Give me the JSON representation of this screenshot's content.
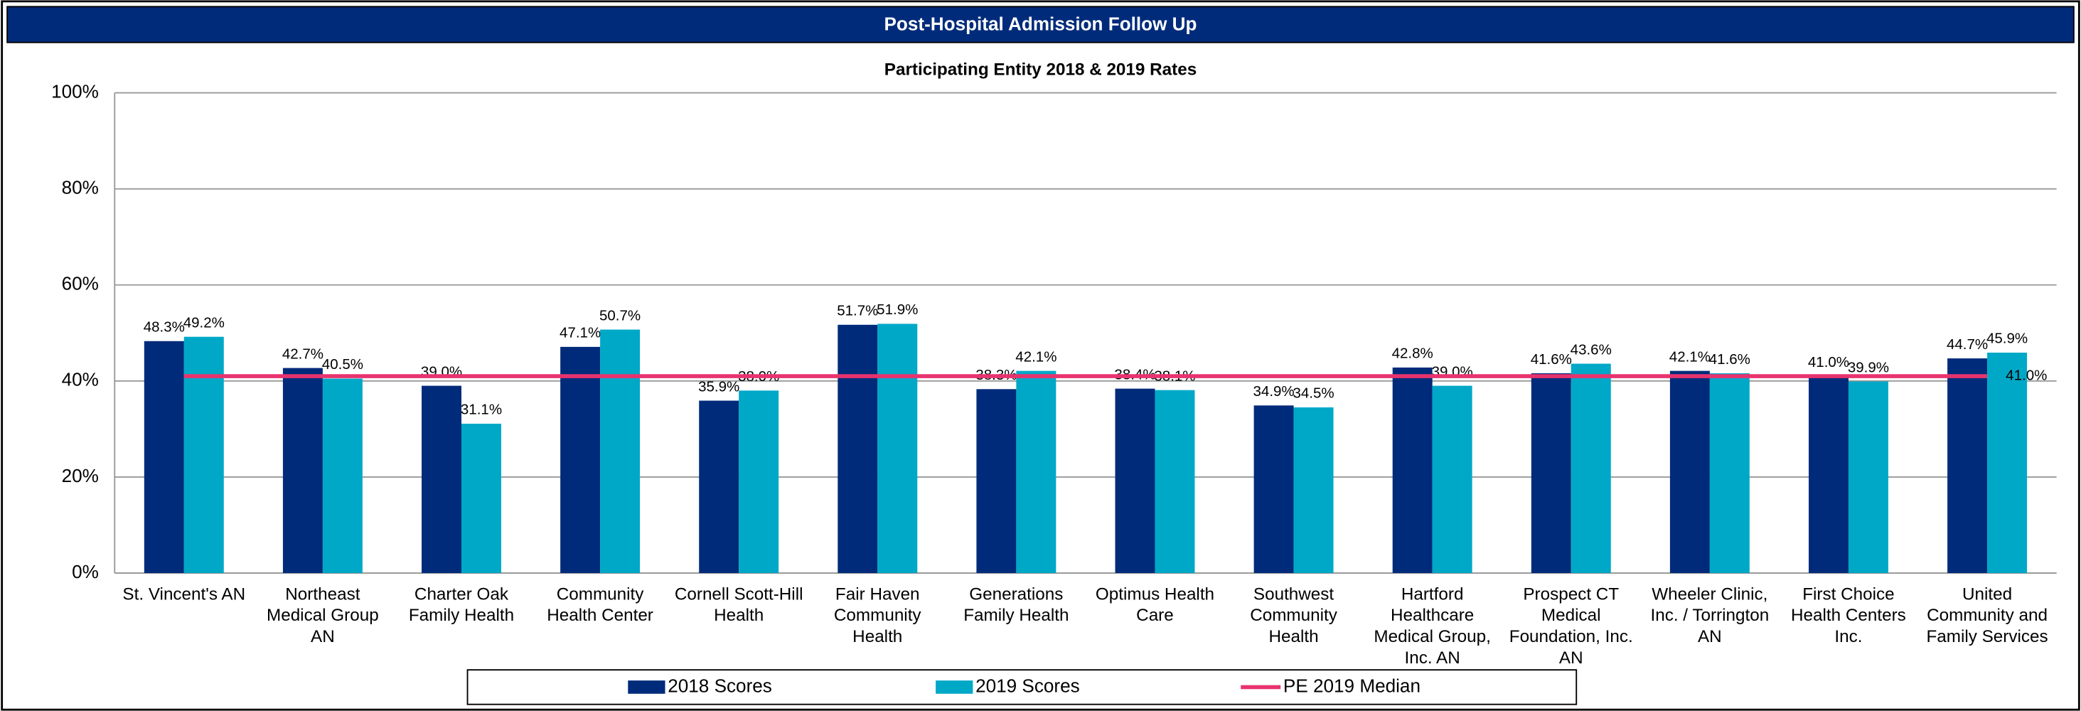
{
  "header": "Post-Hospital Admission Follow Up",
  "chart_data": {
    "type": "bar",
    "title": "Participating Entity 2018 & 2019 Rates",
    "categories": [
      "St. Vincent's AN",
      "Northeast Medical Group AN",
      "Charter Oak Family Health",
      "Community Health Center",
      "Cornell Scott-Hill Health",
      "Fair Haven Community Health",
      "Generations Family Health",
      "Optimus Health Care",
      "Southwest Community Health",
      "Hartford Healthcare Medical Group, Inc. AN",
      "Prospect CT Medical Foundation, Inc. AN",
      "Wheeler Clinic, Inc. / Torrington AN",
      "First Choice Health Centers Inc.",
      "United Community and Family Services"
    ],
    "series": [
      {
        "name": "2018 Scores",
        "color": "#002b7a",
        "values": [
          48.3,
          42.7,
          39.0,
          47.1,
          35.9,
          51.7,
          38.3,
          38.4,
          34.9,
          42.8,
          41.6,
          42.1,
          41.0,
          44.7
        ],
        "value_labels": [
          "48.3%",
          "42.7%",
          "39.0%",
          "47.1%",
          "35.9%",
          "51.7%",
          "38.3%",
          "38.4%",
          "34.9%",
          "42.8%",
          "41.6%",
          "42.1%",
          "41.0%",
          "44.7%"
        ]
      },
      {
        "name": "2019 Scores",
        "color": "#00a8c8",
        "values": [
          49.2,
          40.5,
          31.1,
          50.7,
          38.0,
          51.9,
          42.1,
          38.1,
          34.5,
          39.0,
          43.6,
          41.6,
          39.9,
          45.9
        ],
        "value_labels": [
          "49.2%",
          "40.5%",
          "31.1%",
          "50.7%",
          "38.0%",
          "51.9%",
          "42.1%",
          "38.1%",
          "34.5%",
          "39.0%",
          "43.6%",
          "41.6%",
          "39.9%",
          "45.9%"
        ]
      }
    ],
    "reference_line": {
      "name": "PE 2019 Median",
      "color": "#e8336e",
      "value": 41.0,
      "value_label": "41.0%"
    },
    "ylim": [
      0,
      100
    ],
    "yticks": [
      {
        "value": 0,
        "label": "0%"
      },
      {
        "value": 20,
        "label": "20%"
      },
      {
        "value": 40,
        "label": "40%"
      },
      {
        "value": 60,
        "label": "60%"
      },
      {
        "value": 80,
        "label": "80%"
      },
      {
        "value": 100,
        "label": "100%"
      }
    ],
    "grid": true,
    "legend": "bottom"
  }
}
